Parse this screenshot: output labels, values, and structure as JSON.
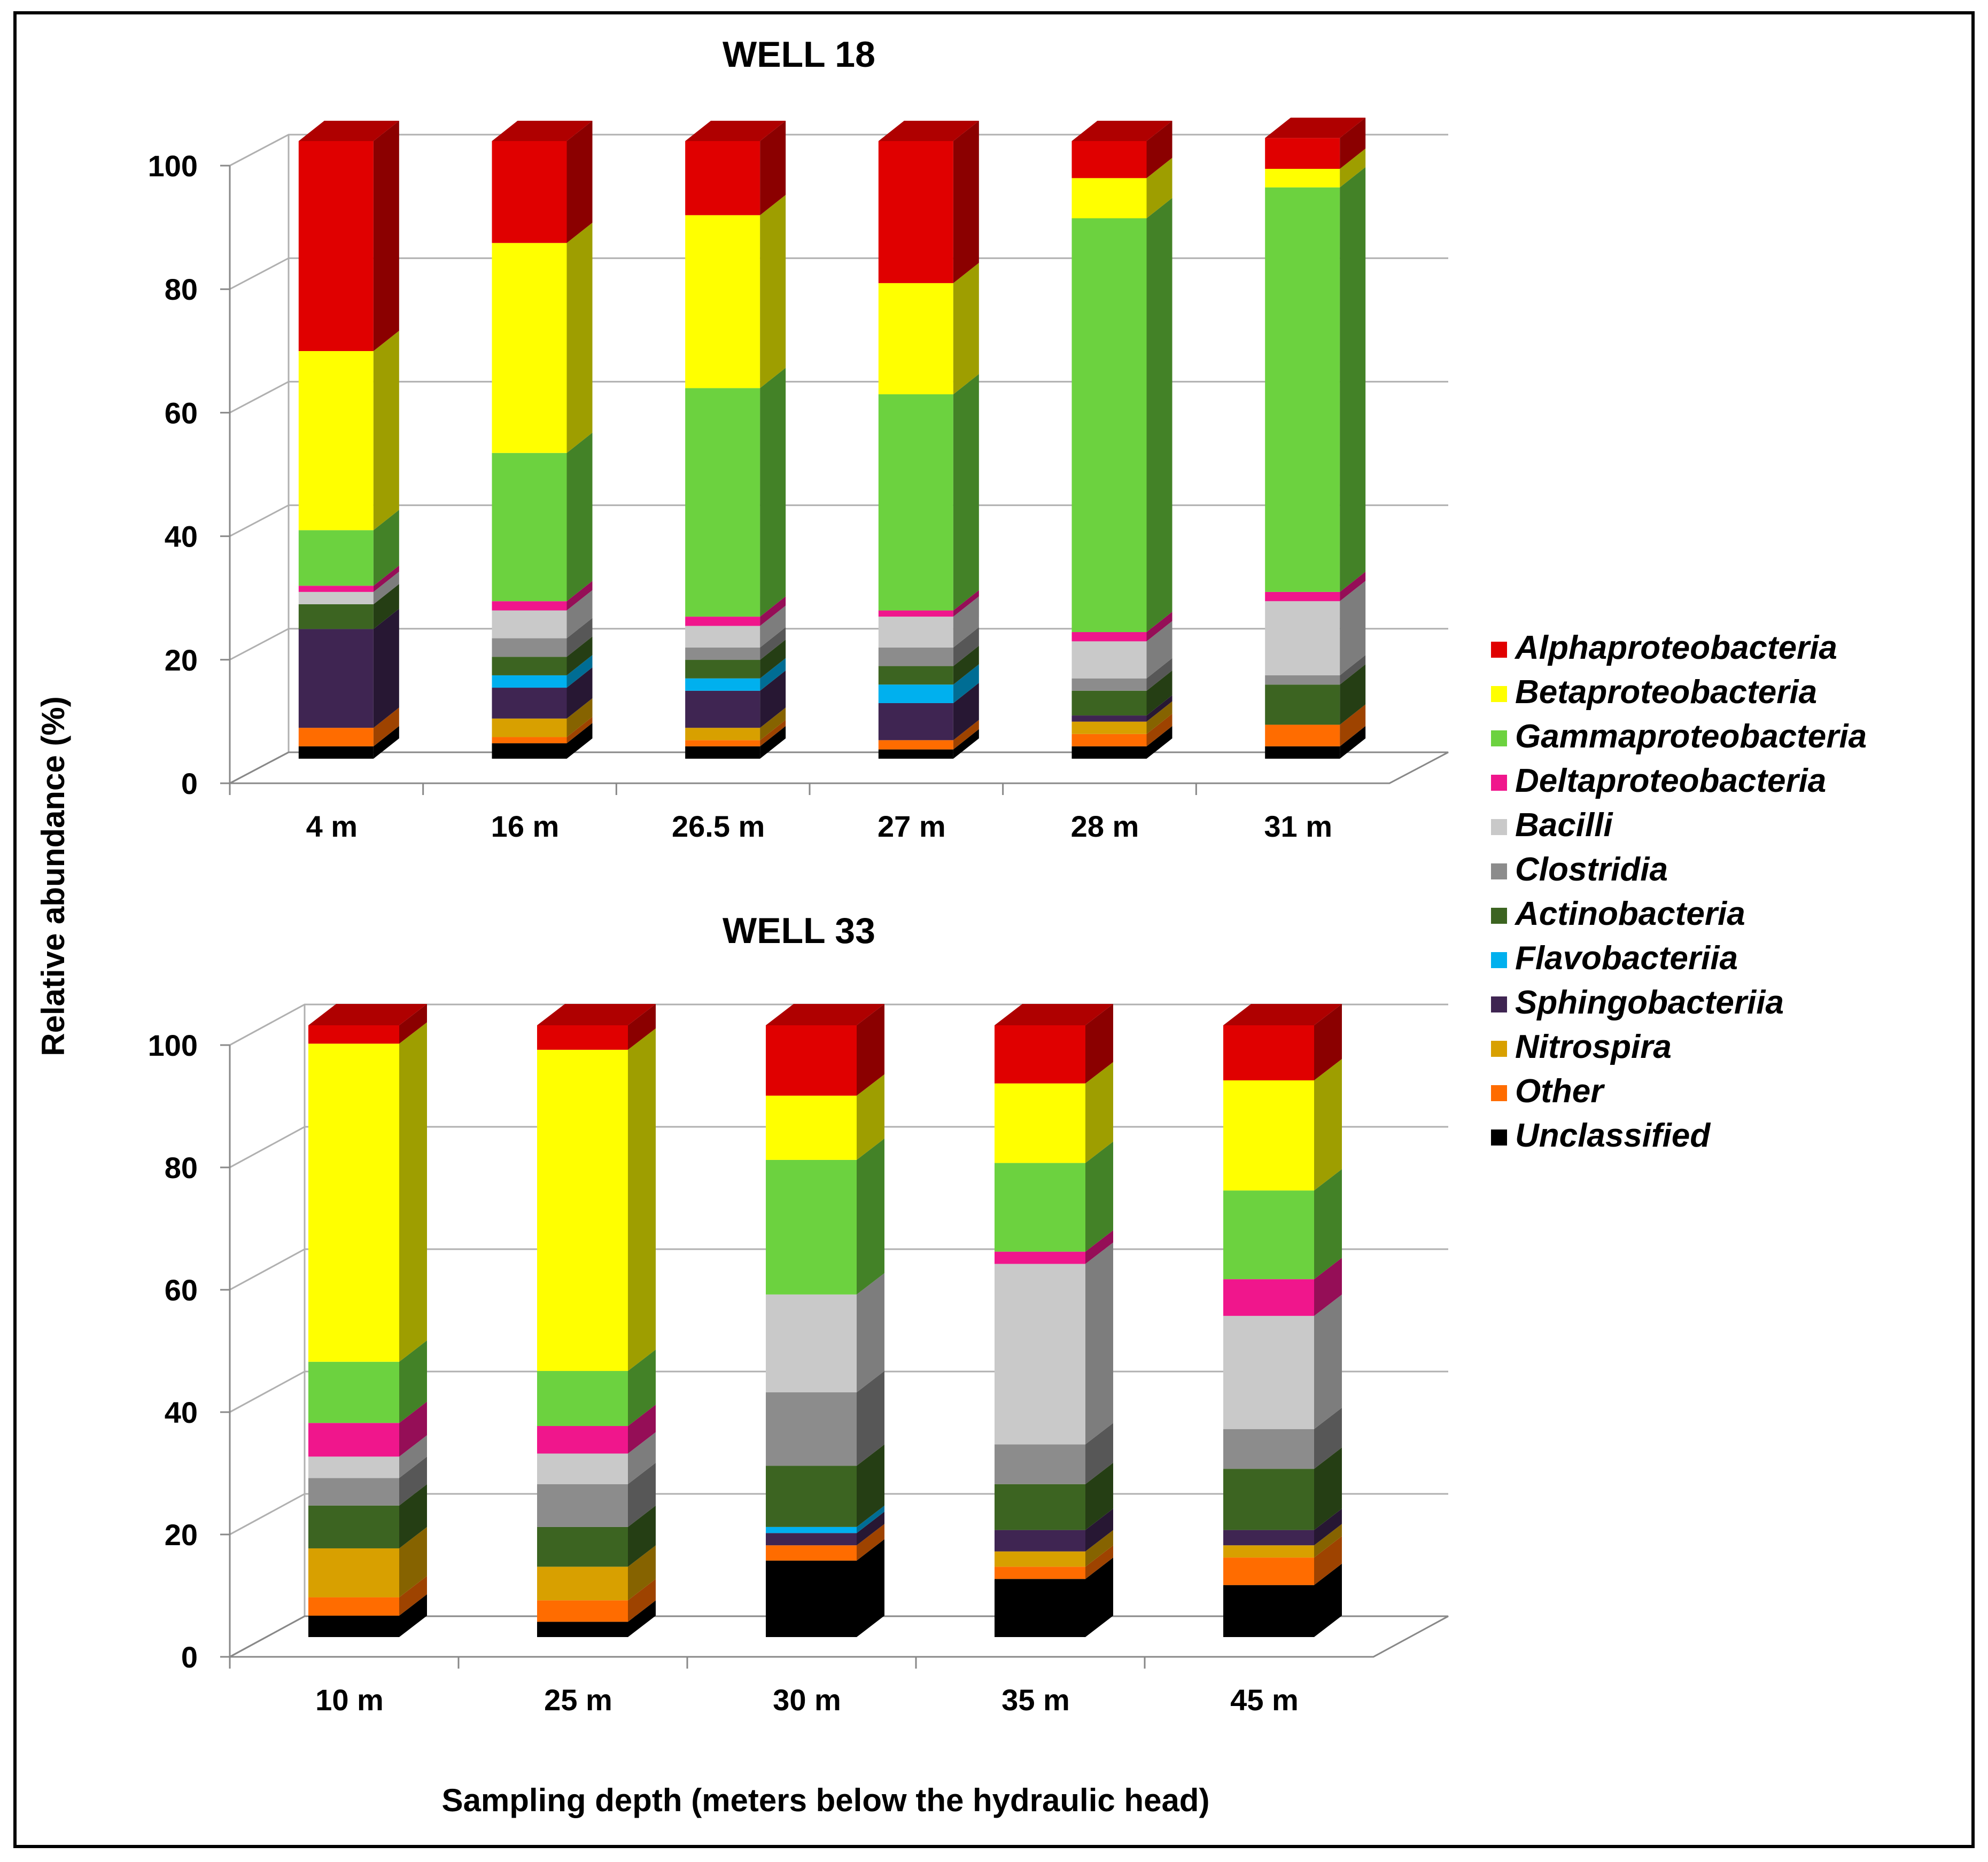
{
  "xlabel": "Sampling depth (meters below the hydraulic head)",
  "ylabel": "Relative abundance (%)",
  "legend": {
    "position": "right",
    "items": [
      {
        "label": "Alphaproteobacteria",
        "color": "#e00000"
      },
      {
        "label": "Betaproteobacteria",
        "color": "#ffff00"
      },
      {
        "label": "Gammaproteobacteria",
        "color": "#6cd23f"
      },
      {
        "label": "Deltaproteobacteria",
        "color": "#f0168c"
      },
      {
        "label": "Bacilli",
        "color": "#c9c9c9"
      },
      {
        "label": "Clostridia",
        "color": "#8c8c8c"
      },
      {
        "label": "Actinobacteria",
        "color": "#3c6421"
      },
      {
        "label": "Flavobacteriia",
        "color": "#00b0ee"
      },
      {
        "label": "Sphingobacteriia",
        "color": "#3f2552"
      },
      {
        "label": "Nitrospira",
        "color": "#d8a000"
      },
      {
        "label": "Other",
        "color": "#ff6c00"
      },
      {
        "label": "Unclassified",
        "color": "#000000"
      }
    ]
  },
  "chart_data": [
    {
      "type": "bar",
      "stacked": true,
      "title": "WELL 18",
      "xlabel": "Sampling depth (meters below the hydraulic head)",
      "ylabel": "Relative abundance (%)",
      "ylim": [
        0,
        100
      ],
      "yticks": [
        "0",
        "20",
        "40",
        "60",
        "80",
        "100"
      ],
      "grid": true,
      "categories": [
        "4 m",
        "16 m",
        "26.5 m",
        "27 m",
        "28 m",
        "31 m"
      ],
      "series": [
        {
          "name": "Unclassified",
          "values": [
            2,
            2.5,
            2,
            1.5,
            2,
            2
          ]
        },
        {
          "name": "Other",
          "values": [
            3,
            1,
            1,
            1.5,
            2,
            3.5
          ]
        },
        {
          "name": "Nitrospira",
          "values": [
            0,
            3,
            2,
            0,
            2,
            0
          ]
        },
        {
          "name": "Sphingobacteriia",
          "values": [
            16,
            5,
            6,
            6,
            1,
            0
          ]
        },
        {
          "name": "Flavobacteriia",
          "values": [
            0,
            2,
            2,
            3,
            0,
            0
          ]
        },
        {
          "name": "Actinobacteria",
          "values": [
            4,
            3,
            3,
            3,
            4,
            6.5
          ]
        },
        {
          "name": "Clostridia",
          "values": [
            0,
            3,
            2,
            3,
            2,
            1.5
          ]
        },
        {
          "name": "Bacilli",
          "values": [
            2,
            4.5,
            3.5,
            5,
            6,
            12
          ]
        },
        {
          "name": "Deltaproteobacteria",
          "values": [
            1,
            1.5,
            1.5,
            1,
            1.5,
            1.5
          ]
        },
        {
          "name": "Gammaproteobacteria",
          "values": [
            9,
            24,
            37,
            35,
            67,
            65.5
          ]
        },
        {
          "name": "Betaproteobacteria",
          "values": [
            29,
            34,
            28,
            18,
            6.5,
            3
          ]
        },
        {
          "name": "Alphaproteobacteria",
          "values": [
            34,
            16.5,
            12,
            23,
            6,
            5
          ]
        }
      ]
    },
    {
      "type": "bar",
      "stacked": true,
      "title": "WELL 33",
      "xlabel": "Sampling depth (meters below the hydraulic head)",
      "ylabel": "Relative abundance (%)",
      "ylim": [
        0,
        100
      ],
      "yticks": [
        "0",
        "20",
        "40",
        "60",
        "80",
        "100"
      ],
      "grid": true,
      "categories": [
        "10 m",
        "25 m",
        "30 m",
        "35 m",
        "45 m"
      ],
      "series": [
        {
          "name": "Unclassified",
          "values": [
            3.5,
            2.5,
            12.5,
            9.5,
            8.5
          ]
        },
        {
          "name": "Other",
          "values": [
            3,
            3.5,
            2.5,
            2,
            4.5
          ]
        },
        {
          "name": "Nitrospira",
          "values": [
            8,
            5.5,
            0,
            2.5,
            2
          ]
        },
        {
          "name": "Sphingobacteriia",
          "values": [
            0,
            0,
            2,
            3.5,
            2.5
          ]
        },
        {
          "name": "Flavobacteriia",
          "values": [
            0,
            0,
            1,
            0,
            0
          ]
        },
        {
          "name": "Actinobacteria",
          "values": [
            7,
            6.5,
            10,
            7.5,
            10
          ]
        },
        {
          "name": "Clostridia",
          "values": [
            4.5,
            7,
            12,
            6.5,
            6.5
          ]
        },
        {
          "name": "Bacilli",
          "values": [
            3.5,
            5,
            16,
            29.5,
            18.5
          ]
        },
        {
          "name": "Deltaproteobacteria",
          "values": [
            5.5,
            4.5,
            0,
            2,
            6
          ]
        },
        {
          "name": "Gammaproteobacteria",
          "values": [
            10,
            9,
            22,
            14.5,
            14.5
          ]
        },
        {
          "name": "Betaproteobacteria",
          "values": [
            52,
            52.5,
            10.5,
            13,
            18
          ]
        },
        {
          "name": "Alphaproteobacteria",
          "values": [
            3,
            4,
            11.5,
            9.5,
            9
          ]
        }
      ]
    }
  ]
}
